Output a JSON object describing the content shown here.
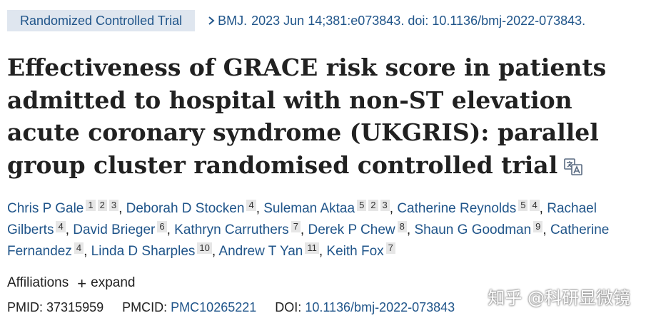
{
  "header": {
    "publication_type": "Randomized Controlled Trial",
    "journal": "BMJ.",
    "citation": "2023 Jun 14;381:e073843. doi: 10.1136/bmj-2022-073843."
  },
  "title": "Effectiveness of GRACE risk score in patients admitted to hospital with non-ST elevation acute coronary syndrome (UKGRIS): parallel group cluster randomised controlled trial",
  "authors": [
    {
      "name": "Chris P Gale",
      "affiliations": [
        "1",
        "2",
        "3"
      ]
    },
    {
      "name": "Deborah D Stocken",
      "affiliations": [
        "4"
      ]
    },
    {
      "name": "Suleman Aktaa",
      "affiliations": [
        "5",
        "2",
        "3"
      ]
    },
    {
      "name": "Catherine Reynolds",
      "affiliations": [
        "5",
        "4"
      ]
    },
    {
      "name": "Rachael Gilberts",
      "affiliations": [
        "4"
      ]
    },
    {
      "name": "David Brieger",
      "affiliations": [
        "6"
      ]
    },
    {
      "name": "Kathryn Carruthers",
      "affiliations": [
        "7"
      ]
    },
    {
      "name": "Derek P Chew",
      "affiliations": [
        "8"
      ]
    },
    {
      "name": "Shaun G Goodman",
      "affiliations": [
        "9"
      ]
    },
    {
      "name": "Catherine Fernandez",
      "affiliations": [
        "4"
      ]
    },
    {
      "name": "Linda D Sharples",
      "affiliations": [
        "10"
      ]
    },
    {
      "name": "Andrew T Yan",
      "affiliations": [
        "11"
      ]
    },
    {
      "name": "Keith Fox",
      "affiliations": [
        "7"
      ]
    }
  ],
  "affiliations_section": {
    "label": "Affiliations",
    "expand_label": "expand"
  },
  "identifiers": {
    "pmid_label": "PMID:",
    "pmid": "37315959",
    "pmcid_label": "PMCID:",
    "pmcid": "PMC10265221",
    "doi_label": "DOI:",
    "doi": "10.1136/bmj-2022-073843"
  },
  "watermark": "知乎 @科研显微镜",
  "colors": {
    "link": "#20558a",
    "pub_type_bg": "#dfe6ef",
    "affiliation_badge_bg": "#e6e6e6"
  }
}
